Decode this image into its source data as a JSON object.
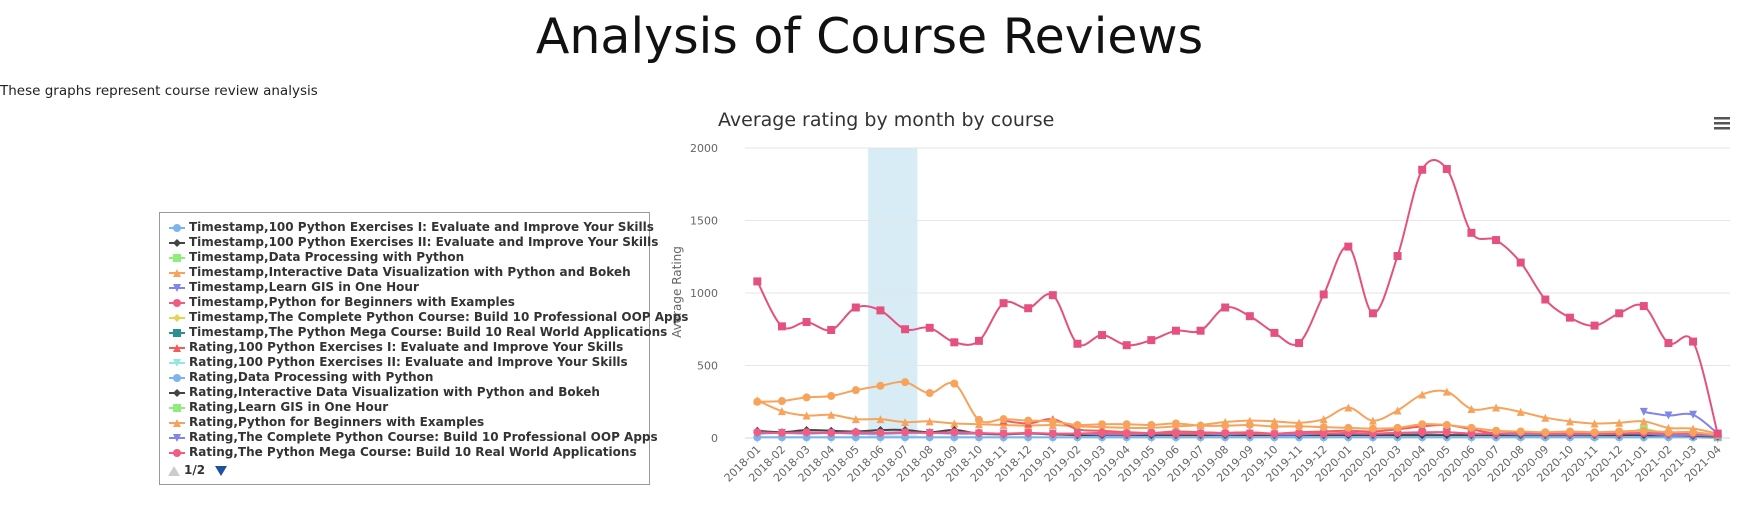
{
  "page": {
    "title": "Analysis of Course Reviews",
    "subtitle": "These graphs represent course review analysis"
  },
  "legend_nav": {
    "page": "1/2"
  },
  "chart_data": {
    "type": "line",
    "title": "Average rating by month by course",
    "xlabel": "",
    "ylabel": "Average Rating",
    "ylim": [
      0,
      2000
    ],
    "yticks": [
      0,
      500,
      1000,
      1500,
      2000
    ],
    "grid": true,
    "legend_placement": "left",
    "highlight_band": [
      "2018-06",
      "2018-07"
    ],
    "categories": [
      "2018-01",
      "2018-02",
      "2018-03",
      "2018-04",
      "2018-05",
      "2018-06",
      "2018-07",
      "2018-08",
      "2018-09",
      "2018-10",
      "2018-11",
      "2018-12",
      "2019-01",
      "2019-02",
      "2019-03",
      "2019-04",
      "2019-05",
      "2019-06",
      "2019-07",
      "2019-08",
      "2019-09",
      "2019-10",
      "2019-11",
      "2019-12",
      "2020-01",
      "2020-02",
      "2020-03",
      "2020-04",
      "2020-05",
      "2020-06",
      "2020-07",
      "2020-08",
      "2020-09",
      "2020-10",
      "2020-11",
      "2020-12",
      "2021-01",
      "2021-02",
      "2021-03",
      "2021-04"
    ],
    "series": [
      {
        "name": "Timestamp,100 Python Exercises I: Evaluate and Improve Your Skills",
        "color": "#7cb5ec",
        "marker": "circle",
        "values": [
          null,
          null,
          null,
          null,
          null,
          null,
          null,
          null,
          null,
          null,
          null,
          null,
          null,
          null,
          null,
          null,
          null,
          null,
          null,
          null,
          null,
          null,
          null,
          null,
          null,
          null,
          null,
          null,
          null,
          null,
          null,
          null,
          null,
          null,
          null,
          null,
          20,
          15,
          10,
          5
        ]
      },
      {
        "name": "Timestamp,100 Python Exercises II: Evaluate and Improve Your Skills",
        "color": "#434348",
        "marker": "diamond",
        "values": [
          null,
          null,
          null,
          null,
          null,
          null,
          null,
          null,
          null,
          null,
          null,
          null,
          null,
          null,
          null,
          null,
          null,
          null,
          null,
          null,
          null,
          null,
          null,
          null,
          null,
          null,
          null,
          null,
          null,
          null,
          null,
          null,
          null,
          null,
          null,
          null,
          15,
          12,
          8,
          3
        ]
      },
      {
        "name": "Timestamp,Data Processing with Python",
        "color": "#90ed7d",
        "marker": "square",
        "values": [
          null,
          null,
          null,
          null,
          null,
          null,
          null,
          null,
          null,
          null,
          null,
          null,
          null,
          null,
          null,
          null,
          null,
          null,
          null,
          null,
          null,
          null,
          null,
          null,
          null,
          null,
          20,
          30,
          40,
          25,
          20,
          15,
          15,
          20,
          15,
          20,
          60,
          25,
          20,
          5
        ]
      },
      {
        "name": "Timestamp,Interactive Data Visualization with Python and Bokeh",
        "color": "#f7a35c",
        "marker": "triangle",
        "values": [
          260,
          185,
          155,
          160,
          130,
          130,
          110,
          115,
          100,
          95,
          90,
          85,
          90,
          80,
          75,
          70,
          70,
          80,
          90,
          110,
          120,
          115,
          105,
          130,
          210,
          120,
          190,
          300,
          320,
          200,
          210,
          180,
          140,
          115,
          100,
          105,
          115,
          70,
          65,
          30
        ]
      },
      {
        "name": "Timestamp,Learn GIS in One Hour",
        "color": "#8085e9",
        "marker": "triangle-down",
        "values": [
          null,
          null,
          null,
          null,
          null,
          null,
          null,
          null,
          null,
          null,
          null,
          null,
          null,
          null,
          null,
          null,
          null,
          null,
          null,
          null,
          null,
          null,
          null,
          null,
          null,
          null,
          null,
          null,
          null,
          null,
          null,
          null,
          null,
          null,
          null,
          null,
          180,
          155,
          160,
          30
        ]
      },
      {
        "name": "Timestamp,Python for Beginners with Examples",
        "color": "#f15c80",
        "marker": "circle",
        "values": [
          null,
          null,
          null,
          null,
          null,
          null,
          null,
          null,
          null,
          null,
          null,
          null,
          null,
          null,
          null,
          null,
          null,
          null,
          null,
          null,
          null,
          null,
          null,
          null,
          null,
          null,
          null,
          null,
          null,
          null,
          null,
          null,
          null,
          null,
          null,
          null,
          null,
          null,
          null,
          null
        ]
      },
      {
        "name": "Timestamp,The Complete Python Course: Build 10 Professional OOP Apps",
        "color": "#e4d354",
        "marker": "diamond",
        "values": [
          null,
          null,
          null,
          null,
          null,
          null,
          null,
          null,
          null,
          null,
          null,
          null,
          null,
          null,
          null,
          null,
          null,
          null,
          null,
          null,
          null,
          null,
          null,
          null,
          null,
          null,
          null,
          null,
          null,
          null,
          null,
          null,
          null,
          null,
          null,
          null,
          null,
          null,
          null,
          null
        ]
      },
      {
        "name": "Timestamp,The Python Mega Course: Build 10 Real World Applications",
        "color": "#2b908f",
        "marker": "square",
        "values": [
          null,
          null,
          null,
          null,
          null,
          null,
          null,
          null,
          null,
          null,
          null,
          null,
          null,
          null,
          null,
          null,
          null,
          null,
          null,
          null,
          null,
          null,
          null,
          null,
          null,
          null,
          null,
          null,
          null,
          null,
          null,
          null,
          null,
          null,
          null,
          null,
          null,
          null,
          null,
          null
        ]
      },
      {
        "name": "Rating,100 Python Exercises I: Evaluate and Improve Your Skills",
        "color": "#f45b5b",
        "marker": "triangle",
        "values": [
          null,
          null,
          null,
          null,
          null,
          null,
          null,
          null,
          null,
          null,
          120,
          100,
          130,
          60,
          50,
          40,
          35,
          45,
          40,
          35,
          40,
          30,
          40,
          45,
          50,
          45,
          60,
          80,
          90,
          60,
          30,
          25,
          20,
          20,
          20,
          25,
          30,
          20,
          15,
          10
        ]
      },
      {
        "name": "Rating,100 Python Exercises II: Evaluate and Improve Your Skills",
        "color": "#91e8e1",
        "marker": "triangle-down",
        "values": [
          null,
          null,
          null,
          null,
          null,
          null,
          null,
          null,
          null,
          null,
          null,
          null,
          null,
          null,
          null,
          null,
          null,
          null,
          null,
          null,
          null,
          null,
          null,
          null,
          null,
          null,
          null,
          null,
          null,
          null,
          null,
          null,
          null,
          null,
          null,
          null,
          null,
          null,
          null,
          null
        ]
      },
      {
        "name": "Rating,Data Processing with Python",
        "color": "#7cb5ec",
        "marker": "circle",
        "values": [
          5,
          5,
          5,
          5,
          5,
          5,
          5,
          5,
          5,
          5,
          5,
          5,
          5,
          5,
          5,
          5,
          5,
          5,
          5,
          5,
          5,
          5,
          5,
          5,
          5,
          5,
          5,
          5,
          5,
          5,
          5,
          5,
          5,
          5,
          5,
          5,
          5,
          5,
          5,
          5
        ]
      },
      {
        "name": "Rating,Interactive Data Visualization with Python and Bokeh",
        "color": "#434348",
        "marker": "diamond",
        "values": [
          50,
          40,
          55,
          50,
          45,
          55,
          55,
          40,
          55,
          30,
          25,
          30,
          25,
          20,
          20,
          20,
          20,
          20,
          20,
          20,
          20,
          20,
          20,
          20,
          20,
          20,
          20,
          20,
          20,
          20,
          20,
          20,
          20,
          20,
          20,
          20,
          20,
          20,
          15,
          10
        ]
      },
      {
        "name": "Rating,Learn GIS in One Hour",
        "color": "#90ed7d",
        "marker": "square",
        "values": [
          null,
          null,
          null,
          null,
          null,
          null,
          null,
          null,
          null,
          null,
          null,
          null,
          null,
          null,
          null,
          null,
          null,
          null,
          null,
          null,
          null,
          null,
          null,
          null,
          null,
          null,
          null,
          null,
          null,
          null,
          null,
          null,
          null,
          null,
          null,
          null,
          null,
          null,
          null,
          null
        ]
      },
      {
        "name": "Rating,Python for Beginners with Examples",
        "color": "#f7a35c",
        "marker": "triangle",
        "values": [
          null,
          null,
          null,
          null,
          null,
          null,
          null,
          null,
          null,
          null,
          null,
          null,
          null,
          null,
          null,
          null,
          null,
          null,
          null,
          null,
          null,
          null,
          null,
          null,
          null,
          null,
          null,
          null,
          null,
          null,
          null,
          null,
          null,
          null,
          null,
          null,
          null,
          null,
          null,
          null
        ]
      },
      {
        "name": "Rating,The Complete Python Course: Build 10 Professional OOP Apps",
        "color": "#8085e9",
        "marker": "triangle-down",
        "values": [
          30,
          35,
          30,
          35,
          30,
          30,
          35,
          35,
          30,
          30,
          30,
          30,
          30,
          30,
          25,
          25,
          30,
          30,
          30,
          25,
          30,
          25,
          25,
          30,
          30,
          30,
          35,
          35,
          40,
          30,
          30,
          25,
          25,
          25,
          25,
          30,
          30,
          20,
          20,
          15
        ]
      },
      {
        "name": "Rating,The Python Mega Course: Build 10 Real World Applications",
        "color": "#f15c80",
        "marker": "circle",
        "values": [
          40,
          35,
          40,
          35,
          40,
          35,
          40,
          35,
          40,
          35,
          30,
          35,
          30,
          30,
          35,
          30,
          35,
          30,
          30,
          35,
          30,
          30,
          35,
          30,
          35,
          30,
          35,
          40,
          40,
          30,
          30,
          35,
          30,
          30,
          30,
          30,
          35,
          30,
          30,
          20
        ]
      },
      {
        "name": "",
        "color": "#f7a35c",
        "marker": "circle",
        "values": [
          250,
          255,
          280,
          290,
          330,
          360,
          385,
          310,
          375,
          125,
          130,
          120,
          115,
          90,
          95,
          95,
          90,
          100,
          85,
          85,
          90,
          80,
          80,
          75,
          70,
          65,
          70,
          95,
          90,
          70,
          50,
          45,
          40,
          45,
          40,
          45,
          50,
          40,
          40,
          20
        ]
      },
      {
        "name": "",
        "color": "#e4517f",
        "marker": "square",
        "values": [
          1080,
          770,
          800,
          745,
          900,
          880,
          750,
          760,
          660,
          670,
          930,
          895,
          985,
          650,
          710,
          640,
          675,
          740,
          740,
          900,
          840,
          725,
          655,
          990,
          1320,
          860,
          1255,
          1850,
          1855,
          1415,
          1365,
          1210,
          955,
          830,
          775,
          860,
          910,
          655,
          665,
          30
        ]
      }
    ]
  }
}
